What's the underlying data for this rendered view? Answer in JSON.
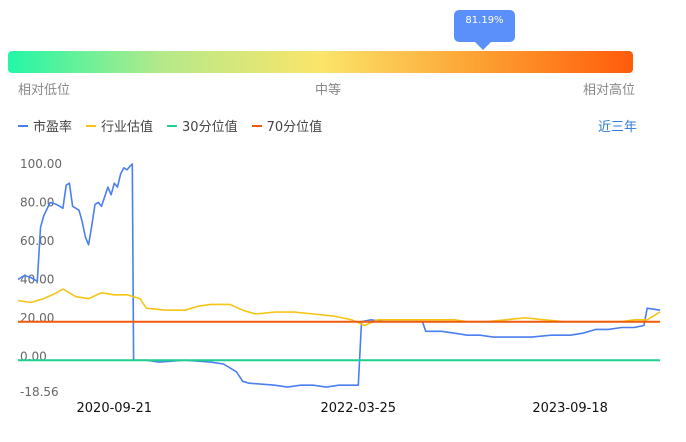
{
  "valuation": {
    "percentile_label": "81.19%",
    "percentile": 81.19,
    "scale_labels": [
      "相对低位",
      "中等",
      "相对高位"
    ]
  },
  "legend": [
    {
      "name": "市盈率",
      "color": "#4a7fef"
    },
    {
      "name": "行业估值",
      "color": "#f5c516"
    },
    {
      "name": "30分位值",
      "color": "#1ed08c"
    },
    {
      "name": "70分位值",
      "color": "#f05a0b"
    }
  ],
  "range_label": "近三年",
  "chart_data": {
    "type": "line",
    "ylim": [
      -18.56,
      100.0
    ],
    "y_ticks": [
      "100.00",
      "80.00",
      "60.00",
      "40.00",
      "20.00",
      "0.00",
      "-18.56"
    ],
    "x_ticks": [
      "2020-09-21",
      "2022-03-25",
      "2023-09-18"
    ],
    "x_tick_positions": [
      0.15,
      0.53,
      0.86
    ],
    "series": [
      {
        "name": "市盈率",
        "color": "#4a7fef",
        "points": [
          [
            0.0,
            40
          ],
          [
            0.01,
            42
          ],
          [
            0.02,
            41
          ],
          [
            0.03,
            39
          ],
          [
            0.035,
            67
          ],
          [
            0.04,
            73
          ],
          [
            0.05,
            80
          ],
          [
            0.06,
            79
          ],
          [
            0.07,
            77
          ],
          [
            0.075,
            89
          ],
          [
            0.08,
            90
          ],
          [
            0.085,
            78
          ],
          [
            0.095,
            76
          ],
          [
            0.1,
            70
          ],
          [
            0.105,
            62
          ],
          [
            0.11,
            58
          ],
          [
            0.115,
            68
          ],
          [
            0.12,
            79
          ],
          [
            0.125,
            80
          ],
          [
            0.13,
            78
          ],
          [
            0.14,
            88
          ],
          [
            0.145,
            84
          ],
          [
            0.15,
            90
          ],
          [
            0.155,
            88
          ],
          [
            0.16,
            95
          ],
          [
            0.165,
            98
          ],
          [
            0.17,
            97
          ],
          [
            0.175,
            99
          ],
          [
            0.178,
            100
          ],
          [
            0.18,
            -2
          ],
          [
            0.2,
            -2
          ],
          [
            0.22,
            -3
          ],
          [
            0.26,
            -2
          ],
          [
            0.3,
            -3
          ],
          [
            0.32,
            -4
          ],
          [
            0.34,
            -8
          ],
          [
            0.35,
            -13
          ],
          [
            0.36,
            -14
          ],
          [
            0.4,
            -15
          ],
          [
            0.42,
            -16
          ],
          [
            0.44,
            -15
          ],
          [
            0.46,
            -15
          ],
          [
            0.48,
            -16
          ],
          [
            0.5,
            -15
          ],
          [
            0.53,
            -15
          ],
          [
            0.535,
            18
          ],
          [
            0.55,
            19
          ],
          [
            0.57,
            18
          ],
          [
            0.6,
            18
          ],
          [
            0.63,
            18
          ],
          [
            0.635,
            13
          ],
          [
            0.66,
            13
          ],
          [
            0.68,
            12
          ],
          [
            0.7,
            11
          ],
          [
            0.72,
            11
          ],
          [
            0.74,
            10
          ],
          [
            0.77,
            10
          ],
          [
            0.8,
            10
          ],
          [
            0.83,
            11
          ],
          [
            0.86,
            11
          ],
          [
            0.88,
            12
          ],
          [
            0.9,
            14
          ],
          [
            0.92,
            14
          ],
          [
            0.94,
            15
          ],
          [
            0.96,
            15
          ],
          [
            0.975,
            16
          ],
          [
            0.98,
            25
          ],
          [
            1.0,
            24
          ]
        ]
      },
      {
        "name": "行业估值",
        "color": "#f5c516",
        "points": [
          [
            0.0,
            29
          ],
          [
            0.02,
            28
          ],
          [
            0.04,
            30
          ],
          [
            0.06,
            33
          ],
          [
            0.07,
            35
          ],
          [
            0.09,
            31
          ],
          [
            0.11,
            30
          ],
          [
            0.13,
            33
          ],
          [
            0.15,
            32
          ],
          [
            0.17,
            32
          ],
          [
            0.19,
            30
          ],
          [
            0.2,
            25
          ],
          [
            0.23,
            24
          ],
          [
            0.26,
            24
          ],
          [
            0.28,
            26
          ],
          [
            0.3,
            27
          ],
          [
            0.33,
            27
          ],
          [
            0.35,
            24
          ],
          [
            0.37,
            22
          ],
          [
            0.4,
            23
          ],
          [
            0.43,
            23
          ],
          [
            0.46,
            22
          ],
          [
            0.49,
            21
          ],
          [
            0.52,
            19
          ],
          [
            0.54,
            16
          ],
          [
            0.56,
            19
          ],
          [
            0.6,
            19
          ],
          [
            0.63,
            19
          ],
          [
            0.65,
            19
          ],
          [
            0.68,
            19
          ],
          [
            0.7,
            18
          ],
          [
            0.73,
            18
          ],
          [
            0.76,
            19
          ],
          [
            0.79,
            20
          ],
          [
            0.82,
            19
          ],
          [
            0.85,
            18
          ],
          [
            0.88,
            18
          ],
          [
            0.91,
            18
          ],
          [
            0.94,
            18
          ],
          [
            0.96,
            19
          ],
          [
            0.98,
            19
          ],
          [
            1.0,
            23
          ]
        ]
      },
      {
        "name": "30分位值",
        "color": "#1ed08c",
        "points": [
          [
            0.0,
            -2
          ],
          [
            1.0,
            -2
          ]
        ]
      },
      {
        "name": "70分位值",
        "color": "#f05a0b",
        "points": [
          [
            0.0,
            18
          ],
          [
            1.0,
            18
          ]
        ]
      }
    ]
  }
}
